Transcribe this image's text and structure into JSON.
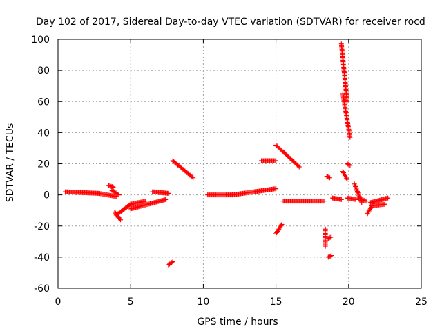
{
  "colors": {
    "background": "#ffffff",
    "axis": "#000000",
    "grid": "#a0a0a0",
    "series": "#ff0000"
  },
  "chart_data": {
    "type": "scatter",
    "title": "Day 102 of 2017, Sidereal Day-to-day VTEC variation (SDTVAR) for receiver rocd",
    "xlabel": "GPS time / hours",
    "ylabel": "SDTVAR / TECUs",
    "xlim": [
      0,
      25
    ],
    "ylim": [
      -60,
      100
    ],
    "xticks": [
      0,
      5,
      10,
      15,
      20,
      25
    ],
    "yticks": [
      -60,
      -40,
      -20,
      0,
      20,
      40,
      60,
      80,
      100
    ],
    "grid": true,
    "marker": "+",
    "series": [
      {
        "name": "SDTVAR",
        "segments": [
          {
            "x0": 0.5,
            "y0": 2,
            "x1": 2.8,
            "y1": 1
          },
          {
            "x0": 2.8,
            "y0": 1,
            "x1": 4.0,
            "y1": -1
          },
          {
            "x0": 3.5,
            "y0": 6,
            "x1": 3.8,
            "y1": 5
          },
          {
            "x0": 3.7,
            "y0": 3,
            "x1": 4.2,
            "y1": 0
          },
          {
            "x0": 3.9,
            "y0": -11,
            "x1": 4.3,
            "y1": -16
          },
          {
            "x0": 4.0,
            "y0": -13,
            "x1": 5.0,
            "y1": -6
          },
          {
            "x0": 5.0,
            "y0": -6,
            "x1": 6.0,
            "y1": -4
          },
          {
            "x0": 5.0,
            "y0": -9,
            "x1": 7.4,
            "y1": -3
          },
          {
            "x0": 6.5,
            "y0": 2,
            "x1": 7.6,
            "y1": 1
          },
          {
            "x0": 7.6,
            "y0": -45,
            "x1": 7.9,
            "y1": -43
          },
          {
            "x0": 7.9,
            "y0": 22,
            "x1": 9.3,
            "y1": 11
          },
          {
            "x0": 10.3,
            "y0": 0,
            "x1": 12.0,
            "y1": 0
          },
          {
            "x0": 12.0,
            "y0": 0,
            "x1": 13.5,
            "y1": 2
          },
          {
            "x0": 13.5,
            "y0": 2,
            "x1": 15.0,
            "y1": 4
          },
          {
            "x0": 14.0,
            "y0": 22,
            "x1": 15.0,
            "y1": 22
          },
          {
            "x0": 15.0,
            "y0": -25,
            "x1": 15.4,
            "y1": -19
          },
          {
            "x0": 15.0,
            "y0": 32,
            "x1": 16.6,
            "y1": 18
          },
          {
            "x0": 15.5,
            "y0": -4,
            "x1": 18.3,
            "y1": -4
          },
          {
            "x0": 18.4,
            "y0": -22,
            "x1": 18.4,
            "y1": -33
          },
          {
            "x0": 18.5,
            "y0": 12,
            "x1": 18.7,
            "y1": 11
          },
          {
            "x0": 18.6,
            "y0": -28,
            "x1": 18.8,
            "y1": -27
          },
          {
            "x0": 18.6,
            "y0": -40,
            "x1": 18.8,
            "y1": -39
          },
          {
            "x0": 18.9,
            "y0": -2,
            "x1": 19.5,
            "y1": -3
          },
          {
            "x0": 19.5,
            "y0": 97,
            "x1": 19.9,
            "y1": 60
          },
          {
            "x0": 19.6,
            "y0": 65,
            "x1": 20.1,
            "y1": 37
          },
          {
            "x0": 19.6,
            "y0": 15,
            "x1": 19.9,
            "y1": 10
          },
          {
            "x0": 19.9,
            "y0": 20,
            "x1": 20.1,
            "y1": 19
          },
          {
            "x0": 19.9,
            "y0": -2,
            "x1": 20.5,
            "y1": -3
          },
          {
            "x0": 20.4,
            "y0": 7,
            "x1": 20.9,
            "y1": -5
          },
          {
            "x0": 20.7,
            "y0": -2,
            "x1": 21.2,
            "y1": -4
          },
          {
            "x0": 21.3,
            "y0": -12,
            "x1": 21.6,
            "y1": -7
          },
          {
            "x0": 21.5,
            "y0": -5,
            "x1": 22.7,
            "y1": -2
          },
          {
            "x0": 21.6,
            "y0": -7,
            "x1": 22.5,
            "y1": -6
          }
        ]
      }
    ]
  }
}
